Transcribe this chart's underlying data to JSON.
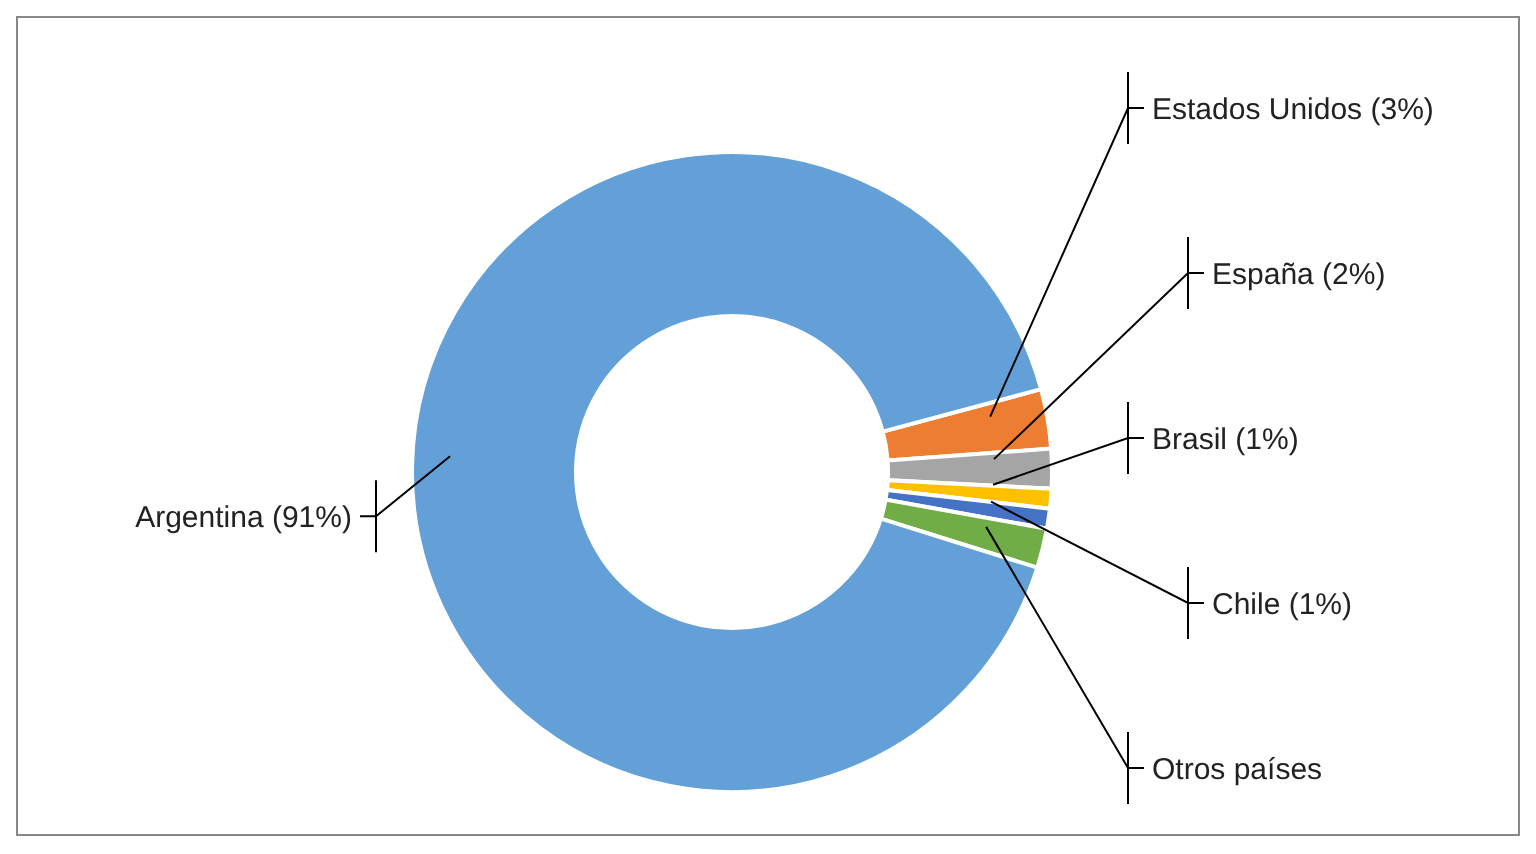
{
  "chart_data": {
    "type": "donut",
    "categories": [
      "Estados Unidos (3%)",
      "España (2%)",
      "Brasil (1%)",
      "Chile (1%)",
      "Otros países",
      "Argentina (91%)"
    ],
    "values": [
      3,
      2,
      1,
      1,
      2,
      91
    ],
    "colors": [
      "#ed7d31",
      "#a5a5a5",
      "#ffc000",
      "#4472c4",
      "#70ad47",
      "#64a0d8"
    ],
    "legend": false
  }
}
